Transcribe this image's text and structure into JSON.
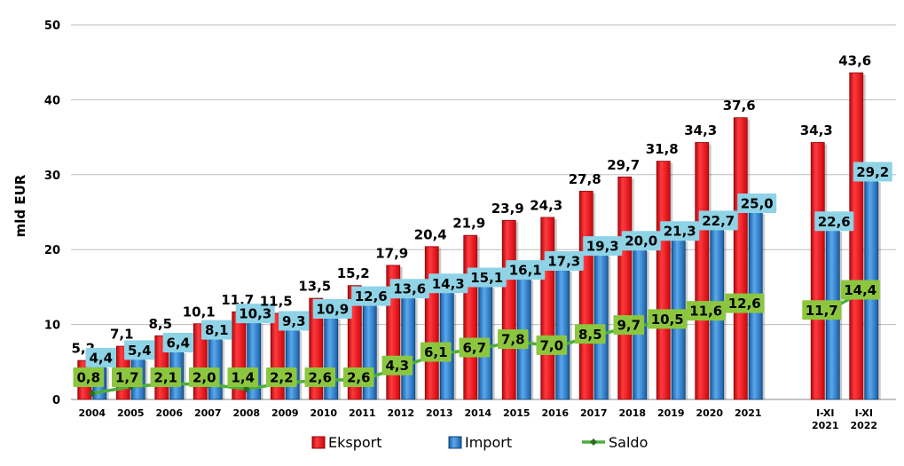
{
  "chart_data": {
    "type": "bar",
    "ylabel": "mld EUR",
    "ylim": [
      0,
      50
    ],
    "yticks": [
      0,
      10,
      20,
      30,
      40,
      50
    ],
    "grid": true,
    "legend_position": "bottom",
    "categories": [
      "2004",
      "2005",
      "2006",
      "2007",
      "2008",
      "2009",
      "2010",
      "2011",
      "2012",
      "2013",
      "2014",
      "2015",
      "2016",
      "2017",
      "2018",
      "2019",
      "2020",
      "2021",
      "",
      "I-XI\n2021",
      "I-XI\n2022"
    ],
    "series": [
      {
        "name": "Eksport",
        "kind": "bar",
        "color": "#e8191e",
        "values": [
          5.2,
          7.1,
          8.5,
          10.1,
          11.7,
          11.5,
          13.5,
          15.2,
          17.9,
          20.4,
          21.9,
          23.9,
          24.3,
          27.8,
          29.7,
          31.8,
          34.3,
          37.6,
          null,
          34.3,
          43.6
        ],
        "labels": [
          "5,2",
          "7,1",
          "8,5",
          "10,1",
          "11,7",
          "11,5",
          "13,5",
          "15,2",
          "17,9",
          "20,4",
          "21,9",
          "23,9",
          "24,3",
          "27,8",
          "29,7",
          "31,8",
          "34,3",
          "37,6",
          "",
          "34,3",
          "43,6"
        ]
      },
      {
        "name": "Import",
        "kind": "bar",
        "color": "#2e7fcc",
        "values": [
          4.4,
          5.4,
          6.4,
          8.1,
          10.3,
          9.3,
          10.9,
          12.6,
          13.6,
          14.3,
          15.1,
          16.1,
          17.3,
          19.3,
          20.0,
          21.3,
          22.7,
          25.0,
          null,
          22.6,
          29.2
        ],
        "labels": [
          "4,4",
          "5,4",
          "6,4",
          "8,1",
          "10,3",
          "9,3",
          "10,9",
          "12,6",
          "13,6",
          "14,3",
          "15,1",
          "16,1",
          "17,3",
          "19,3",
          "20,0",
          "21,3",
          "22,7",
          "25,0",
          "",
          "22,6",
          "29,2"
        ]
      },
      {
        "name": "Saldo",
        "kind": "line",
        "color": "#4caf3c",
        "values": [
          0.8,
          1.7,
          2.1,
          2.0,
          1.4,
          2.2,
          2.6,
          2.6,
          4.3,
          6.1,
          6.7,
          7.8,
          7.0,
          8.5,
          9.7,
          10.5,
          11.6,
          12.6,
          null,
          11.7,
          14.4
        ],
        "labels": [
          "0,8",
          "1,7",
          "2,1",
          "2,0",
          "1,4",
          "2,2",
          "2,6",
          "2,6",
          "4,3",
          "6,1",
          "6,7",
          "7,8",
          "7,0",
          "8,5",
          "9,7",
          "10,5",
          "11,6",
          "12,6",
          "",
          "11,7",
          "14,4"
        ]
      }
    ]
  },
  "colors": {
    "eksport_label_bg": "#ffffff",
    "import_label_bg": "#8fd3e6",
    "saldo_label_bg": "#8cc63f"
  }
}
